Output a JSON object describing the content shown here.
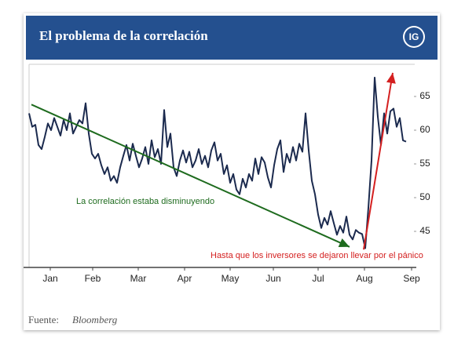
{
  "chart_data": {
    "type": "line",
    "title": "El problema de la correlación",
    "logo": "IG",
    "source_label": "Fuente:",
    "source": "Bloomberg",
    "xlim": [
      0,
      122
    ],
    "ylim": [
      40,
      70
    ],
    "xticks": [
      {
        "value": 6.75,
        "label": "Jan"
      },
      {
        "value": 20.25,
        "label": "Feb"
      },
      {
        "value": 34.75,
        "label": "Mar"
      },
      {
        "value": 49.5,
        "label": "Apr"
      },
      {
        "value": 64,
        "label": "May"
      },
      {
        "value": 77.75,
        "label": "Jun"
      },
      {
        "value": 92,
        "label": "Jul"
      },
      {
        "value": 106.75,
        "label": "Aug"
      },
      {
        "value": 121.75,
        "label": "Sep"
      }
    ],
    "yticks": [
      45,
      50,
      55,
      60,
      65
    ],
    "series": [
      {
        "color": "#1b2a4e",
        "values": [
          62.5,
          60.5,
          60.8,
          57.8,
          57.2,
          59,
          61,
          60,
          61.8,
          60.5,
          59.2,
          61.5,
          60,
          62.5,
          59.5,
          60.5,
          61.5,
          61,
          64,
          59.5,
          56.5,
          55.8,
          56.5,
          54.8,
          53.5,
          54.5,
          52.5,
          53.2,
          52.2,
          54.5,
          56.2,
          57.8,
          55.5,
          58,
          56.2,
          54.5,
          55.8,
          57.5,
          55,
          58.5,
          56,
          57.2,
          55,
          63,
          57.5,
          59.5,
          54.5,
          53.2,
          55.5,
          57,
          55.2,
          56.8,
          54.5,
          55.5,
          57.2,
          55,
          56.2,
          54.5,
          57,
          58.2,
          55.5,
          56.5,
          53.5,
          54.8,
          52.2,
          53.5,
          51.2,
          50.5,
          52.8,
          51.5,
          53.5,
          52.5,
          55.8,
          53.5,
          56,
          55.2,
          53,
          51.5,
          54.8,
          57.2,
          58.5,
          53.8,
          56.5,
          55.2,
          57.5,
          55.5,
          58,
          56.8,
          62.5,
          57,
          52.5,
          50.5,
          47.5,
          45.5,
          47,
          46,
          48,
          46.2,
          44.5,
          45.8,
          44.8,
          47.2,
          44.5,
          43.8,
          45.2,
          44.8,
          44.6,
          42.5,
          48.5,
          55.5,
          67.8,
          62,
          57.8,
          62.5,
          59.5,
          62.8,
          63.2,
          60.5,
          61.8,
          58.5,
          58.3
        ]
      }
    ],
    "annotations": [
      {
        "text": "La correlación estaba disminuyendo",
        "color": "#1e6b1e",
        "x": [
          0.75,
          102
        ],
        "values": [
          63.8,
          42.7
        ]
      },
      {
        "text": "Hasta que los inversores se dejaron llevar por el pánico",
        "color": "#d42020",
        "x": [
          106.5,
          115.75
        ],
        "values": [
          42.3,
          68.5
        ]
      }
    ]
  }
}
